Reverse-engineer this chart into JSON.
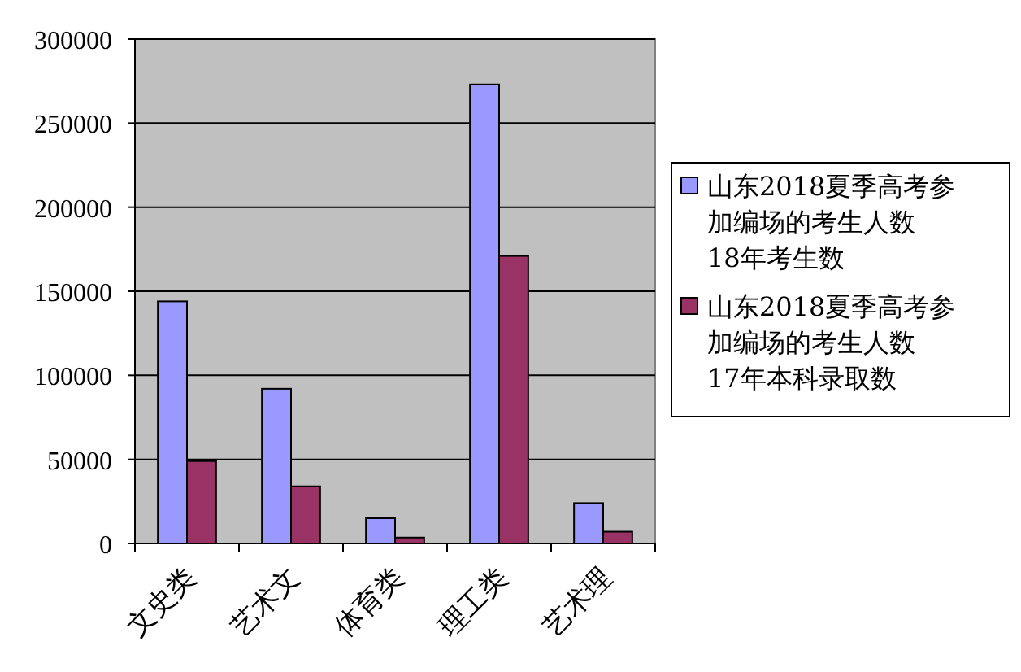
{
  "chart_data": {
    "type": "bar",
    "categories": [
      "文史类",
      "艺术文",
      "体育类",
      "理工类",
      "艺术理"
    ],
    "series": [
      {
        "name": "山东2018夏季高考参加编场的考生人数 18年考生数",
        "color": "#9999ff",
        "values": [
          144000,
          92000,
          15000,
          273000,
          24000
        ]
      },
      {
        "name": "山东2018夏季高考参加编场的考生人数 17年本科录取数",
        "color": "#993366",
        "values": [
          49000,
          34000,
          3500,
          171000,
          7000
        ]
      }
    ],
    "ylim": [
      0,
      300000
    ],
    "yticks": [
      0,
      50000,
      100000,
      150000,
      200000,
      250000,
      300000
    ],
    "grid": "y",
    "legend": "right"
  }
}
